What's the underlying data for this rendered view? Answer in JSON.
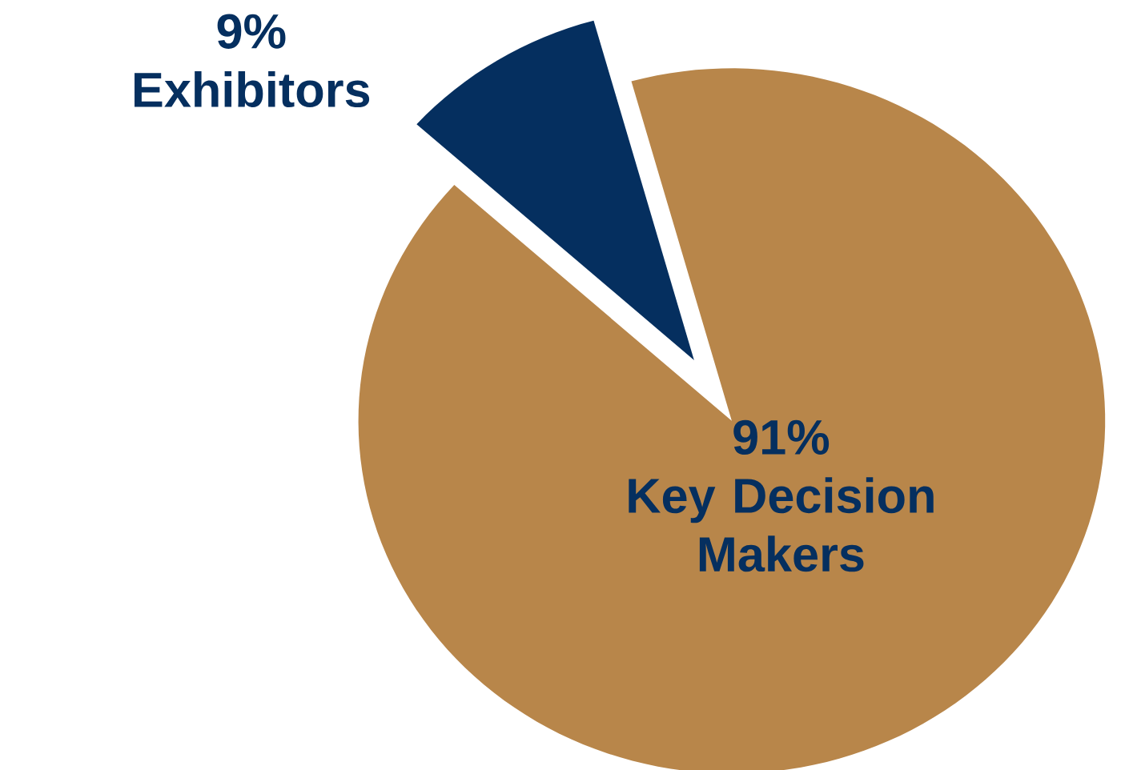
{
  "chart_data": {
    "type": "pie",
    "categories": [
      "Key Decision Makers",
      "Exhibitors"
    ],
    "values": [
      91,
      9
    ],
    "colors": [
      "#b8864a",
      "#052f5f"
    ],
    "value_labels": [
      "91%",
      "9%"
    ]
  }
}
